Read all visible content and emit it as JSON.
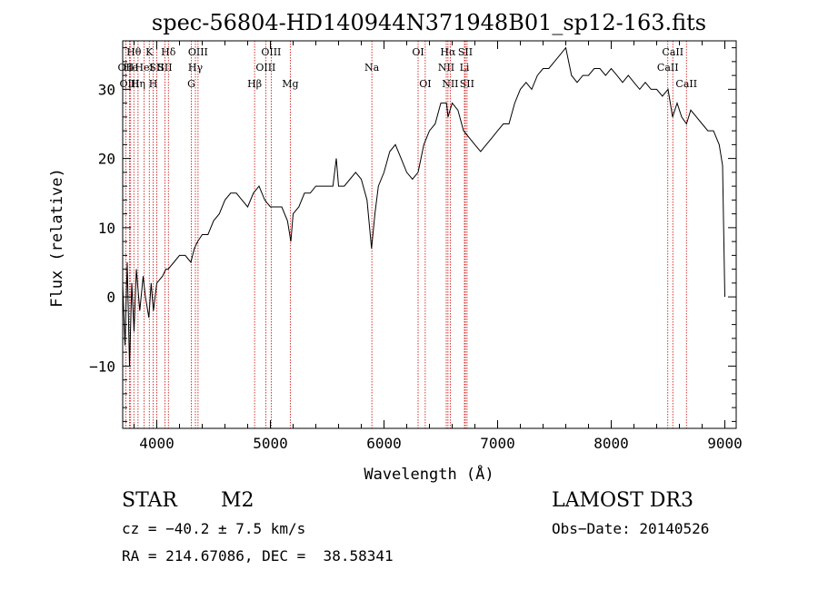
{
  "chart_data": {
    "type": "line",
    "title": "spec-56804-HD140944N371948B01_sp12-163.fits",
    "xlabel": "Wavelength (Å)",
    "ylabel": "Flux (relative)",
    "xlim": [
      3700,
      9100
    ],
    "ylim": [
      -19,
      37
    ],
    "x_ticks": [
      4000,
      5000,
      6000,
      7000,
      8000,
      9000
    ],
    "y_ticks": [
      -10,
      0,
      10,
      20,
      30
    ],
    "grid": false,
    "series": [
      {
        "points": [
          [
            3700,
            2
          ],
          [
            3720,
            -7
          ],
          [
            3740,
            5
          ],
          [
            3760,
            -10
          ],
          [
            3780,
            2
          ],
          [
            3800,
            -5
          ],
          [
            3820,
            4
          ],
          [
            3850,
            -2
          ],
          [
            3880,
            3
          ],
          [
            3900,
            0
          ],
          [
            3930,
            -3
          ],
          [
            3950,
            2
          ],
          [
            3970,
            -2
          ],
          [
            4000,
            2
          ],
          [
            4050,
            3
          ],
          [
            4080,
            4
          ],
          [
            4100,
            4
          ],
          [
            4150,
            5
          ],
          [
            4200,
            6
          ],
          [
            4250,
            6
          ],
          [
            4300,
            5
          ],
          [
            4330,
            7
          ],
          [
            4360,
            8
          ],
          [
            4400,
            9
          ],
          [
            4450,
            9
          ],
          [
            4500,
            11
          ],
          [
            4550,
            12
          ],
          [
            4600,
            14
          ],
          [
            4650,
            15
          ],
          [
            4700,
            15
          ],
          [
            4750,
            14
          ],
          [
            4800,
            13
          ],
          [
            4850,
            15
          ],
          [
            4900,
            16
          ],
          [
            4950,
            14
          ],
          [
            5000,
            13
          ],
          [
            5050,
            13
          ],
          [
            5100,
            13
          ],
          [
            5150,
            11
          ],
          [
            5180,
            8
          ],
          [
            5200,
            12
          ],
          [
            5250,
            13
          ],
          [
            5300,
            15
          ],
          [
            5350,
            15
          ],
          [
            5400,
            16
          ],
          [
            5450,
            16
          ],
          [
            5500,
            16
          ],
          [
            5550,
            16
          ],
          [
            5580,
            20
          ],
          [
            5600,
            16
          ],
          [
            5650,
            16
          ],
          [
            5700,
            17
          ],
          [
            5750,
            18
          ],
          [
            5800,
            17
          ],
          [
            5850,
            14
          ],
          [
            5890,
            7
          ],
          [
            5920,
            12
          ],
          [
            5950,
            16
          ],
          [
            6000,
            18
          ],
          [
            6050,
            21
          ],
          [
            6100,
            22
          ],
          [
            6150,
            20
          ],
          [
            6200,
            18
          ],
          [
            6250,
            17
          ],
          [
            6300,
            18
          ],
          [
            6350,
            22
          ],
          [
            6400,
            24
          ],
          [
            6450,
            25
          ],
          [
            6500,
            28
          ],
          [
            6550,
            28
          ],
          [
            6563,
            26
          ],
          [
            6600,
            28
          ],
          [
            6650,
            27
          ],
          [
            6700,
            24
          ],
          [
            6750,
            23
          ],
          [
            6800,
            22
          ],
          [
            6850,
            21
          ],
          [
            6900,
            22
          ],
          [
            6950,
            23
          ],
          [
            7000,
            24
          ],
          [
            7050,
            25
          ],
          [
            7100,
            25
          ],
          [
            7150,
            28
          ],
          [
            7200,
            30
          ],
          [
            7250,
            31
          ],
          [
            7300,
            30
          ],
          [
            7350,
            32
          ],
          [
            7400,
            33
          ],
          [
            7450,
            33
          ],
          [
            7500,
            34
          ],
          [
            7550,
            35
          ],
          [
            7600,
            36
          ],
          [
            7650,
            32
          ],
          [
            7700,
            31
          ],
          [
            7750,
            32
          ],
          [
            7800,
            32
          ],
          [
            7850,
            33
          ],
          [
            7900,
            33
          ],
          [
            7950,
            32
          ],
          [
            8000,
            33
          ],
          [
            8050,
            32
          ],
          [
            8100,
            31
          ],
          [
            8150,
            32
          ],
          [
            8200,
            31
          ],
          [
            8250,
            30
          ],
          [
            8300,
            31
          ],
          [
            8350,
            30
          ],
          [
            8400,
            30
          ],
          [
            8450,
            29
          ],
          [
            8500,
            30
          ],
          [
            8540,
            26
          ],
          [
            8580,
            28
          ],
          [
            8620,
            26
          ],
          [
            8662,
            25
          ],
          [
            8700,
            27
          ],
          [
            8750,
            26
          ],
          [
            8800,
            25
          ],
          [
            8850,
            24
          ],
          [
            8900,
            24
          ],
          [
            8950,
            22
          ],
          [
            8980,
            19
          ],
          [
            9000,
            0
          ]
        ]
      }
    ],
    "annotations": [
      {
        "label": "Hθ",
        "x": 3798,
        "row": 1
      },
      {
        "label": "OII",
        "x": 3727,
        "row": 2
      },
      {
        "label": "He",
        "x": 3770,
        "row": 2
      },
      {
        "label": "OIII",
        "x": 3760,
        "row": 3
      },
      {
        "label": "Hη",
        "x": 3835,
        "row": 3
      },
      {
        "label": "K",
        "x": 3934,
        "row": 1
      },
      {
        "label": "HeI",
        "x": 3889,
        "row": 2
      },
      {
        "label": "SII",
        "x": 4000,
        "row": 2
      },
      {
        "label": "H",
        "x": 3968,
        "row": 3
      },
      {
        "label": "Hδ",
        "x": 4102,
        "row": 1
      },
      {
        "label": "SII",
        "x": 4072,
        "row": 2
      },
      {
        "label": "OIII",
        "x": 4363,
        "row": 1
      },
      {
        "label": "Hγ",
        "x": 4340,
        "row": 2
      },
      {
        "label": "G",
        "x": 4304,
        "row": 3
      },
      {
        "label": "Hβ",
        "x": 4861,
        "row": 3
      },
      {
        "label": "OIII",
        "x": 5007,
        "row": 1
      },
      {
        "label": "OIII",
        "x": 4959,
        "row": 2
      },
      {
        "label": "Mg",
        "x": 5175,
        "row": 3
      },
      {
        "label": "Na",
        "x": 5893,
        "row": 2
      },
      {
        "label": "OI",
        "x": 6300,
        "row": 1
      },
      {
        "label": "OI",
        "x": 6363,
        "row": 3
      },
      {
        "label": "Hα",
        "x": 6563,
        "row": 1
      },
      {
        "label": "SII",
        "x": 6716,
        "row": 1
      },
      {
        "label": "NII",
        "x": 6548,
        "row": 2
      },
      {
        "label": "Li",
        "x": 6708,
        "row": 2
      },
      {
        "label": "NII",
        "x": 6583,
        "row": 3
      },
      {
        "label": "SII",
        "x": 6731,
        "row": 3
      },
      {
        "label": "CaII",
        "x": 8542,
        "row": 1
      },
      {
        "label": "CaII",
        "x": 8498,
        "row": 2
      },
      {
        "label": "CaII",
        "x": 8662,
        "row": 3
      }
    ]
  },
  "info": {
    "class": "STAR",
    "subclass": "M2",
    "survey": "LAMOST DR3",
    "cz": "cz = −40.2 ± 7.5 km/s",
    "obs_date": "Obs−Date: 20140526",
    "coords": "RA = 214.67086, DEC =  38.58341"
  }
}
